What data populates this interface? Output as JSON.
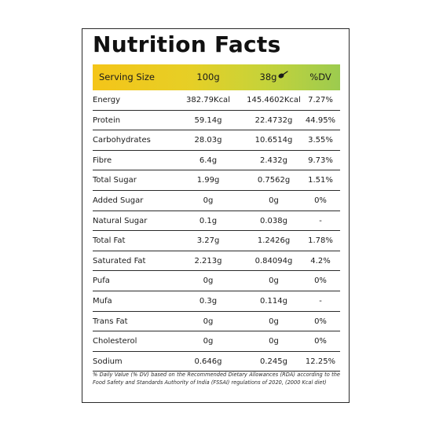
{
  "title": "Nutrition Facts",
  "header": {
    "serving_size_label": "Serving Size",
    "col_100": "100g",
    "col_38": "38g",
    "col_dv": "%DV",
    "spoon_icon": "spoon-icon",
    "gradient_colors": [
      "#f4c519",
      "#9ccb4f"
    ]
  },
  "rows": [
    {
      "name": "Energy",
      "v100": "382.79Kcal",
      "v38": "145.4602Kcal",
      "dv": "7.27%"
    },
    {
      "name": "Protein",
      "v100": "59.14g",
      "v38": "22.4732g",
      "dv": "44.95%"
    },
    {
      "name": "Carbohydrates",
      "v100": "28.03g",
      "v38": "10.6514g",
      "dv": "3.55%"
    },
    {
      "name": "Fibre",
      "v100": "6.4g",
      "v38": "2.432g",
      "dv": "9.73%"
    },
    {
      "name": "Total Sugar",
      "v100": "1.99g",
      "v38": "0.7562g",
      "dv": "1.51%"
    },
    {
      "name": "Added Sugar",
      "v100": "0g",
      "v38": "0g",
      "dv": "0%"
    },
    {
      "name": "Natural Sugar",
      "v100": "0.1g",
      "v38": "0.038g",
      "dv": "-"
    },
    {
      "name": "Total Fat",
      "v100": "3.27g",
      "v38": "1.2426g",
      "dv": "1.78%"
    },
    {
      "name": "Saturated Fat",
      "v100": "2.213g",
      "v38": "0.84094g",
      "dv": "4.2%"
    },
    {
      "name": "Pufa",
      "v100": "0g",
      "v38": "0g",
      "dv": "0%"
    },
    {
      "name": "Mufa",
      "v100": "0.3g",
      "v38": "0.114g",
      "dv": "-"
    },
    {
      "name": "Trans Fat",
      "v100": "0g",
      "v38": "0g",
      "dv": "0%"
    },
    {
      "name": "Cholesterol",
      "v100": "0g",
      "v38": "0g",
      "dv": "0%"
    },
    {
      "name": "Sodium",
      "v100": "0.646g",
      "v38": "0.245g",
      "dv": "12.25%"
    }
  ],
  "footnote": "% Daily Value (% DV) based on the Recommended Dietary Allowances (RDA) according to the Food Safety and Standards Authority of India (FSSAI) regulations of 2020, (2000 Kcal diet)"
}
